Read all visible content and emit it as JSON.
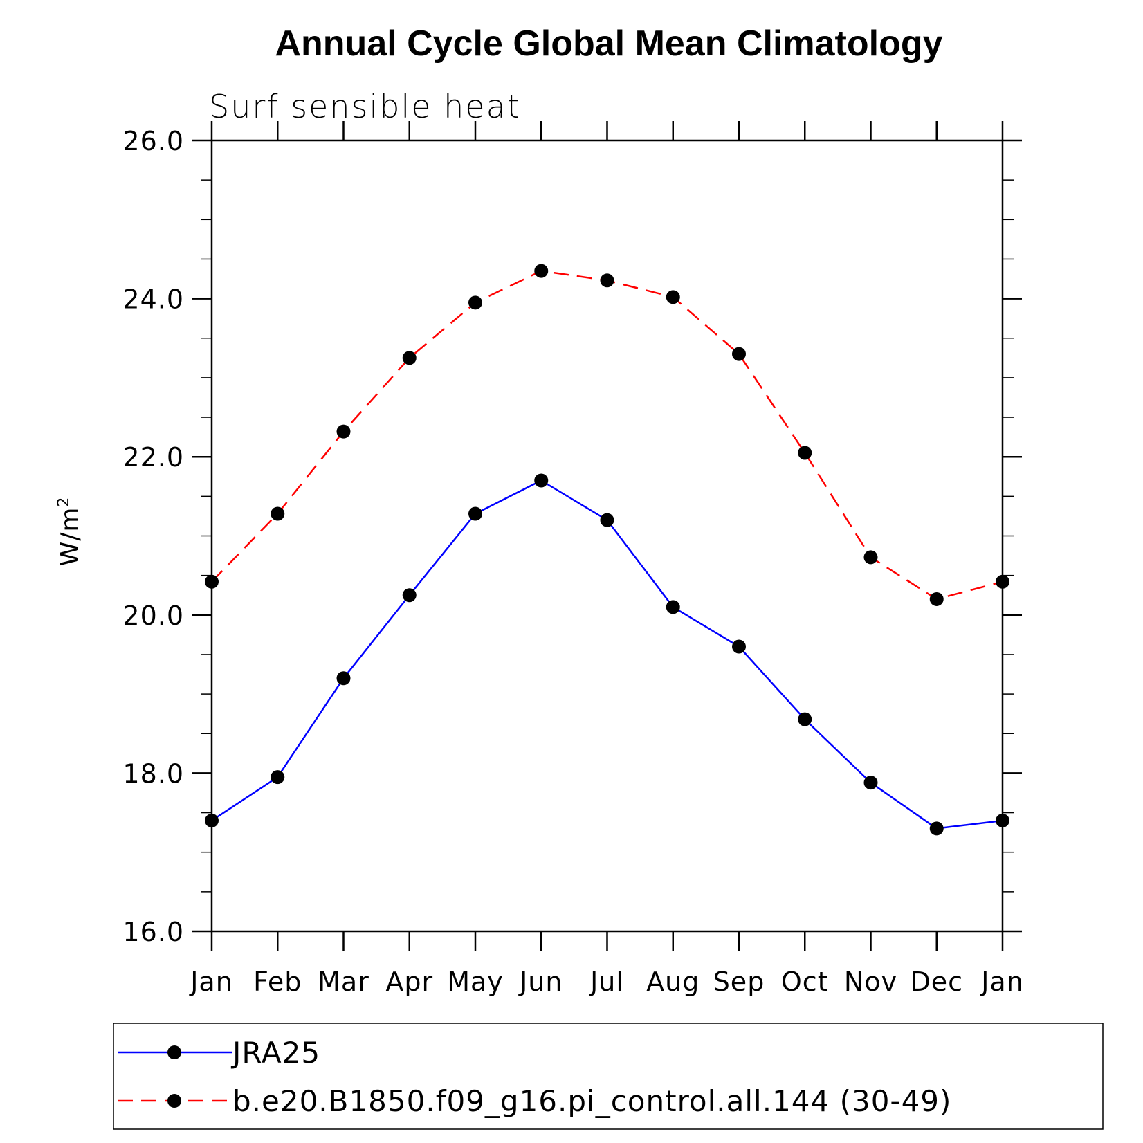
{
  "chart_data": {
    "type": "line",
    "title": "Annual Cycle Global Mean Climatology",
    "subtitle": "Surf sensible heat",
    "ylabel": "W/m",
    "ylabel_superscript": "2",
    "xlabel": "",
    "categories": [
      "Jan",
      "Feb",
      "Mar",
      "Apr",
      "May",
      "Jun",
      "Jul",
      "Aug",
      "Sep",
      "Oct",
      "Nov",
      "Dec",
      "Jan"
    ],
    "ylim": [
      16.0,
      26.0
    ],
    "yticks": [
      "16.0",
      "18.0",
      "20.0",
      "22.0",
      "24.0",
      "26.0"
    ],
    "grid": false,
    "legend_position": "bottom",
    "series": [
      {
        "name": "JRA25",
        "color": "#0000ff",
        "line_style": "solid",
        "marker": "filled-circle",
        "values": [
          17.4,
          17.95,
          19.2,
          20.25,
          21.28,
          21.7,
          21.2,
          20.1,
          19.6,
          18.68,
          17.88,
          17.3,
          17.4
        ]
      },
      {
        "name": "b.e20.B1850.f09_g16.pi_control.all.144 (30-49)",
        "color": "#ff0000",
        "line_style": "dashed",
        "marker": "filled-circle",
        "values": [
          20.42,
          21.28,
          22.32,
          23.25,
          23.95,
          24.35,
          24.23,
          24.02,
          23.3,
          22.05,
          20.73,
          20.2,
          20.42
        ]
      }
    ]
  }
}
